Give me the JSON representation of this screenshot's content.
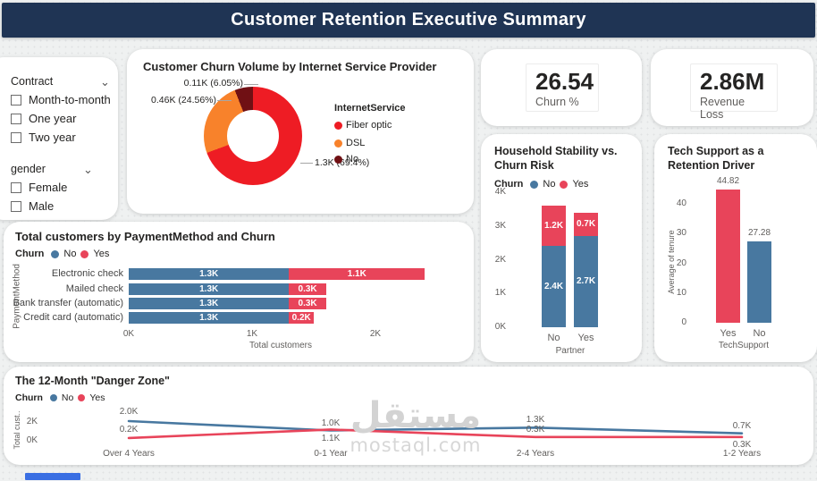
{
  "header": {
    "title": "Customer Retention Executive Summary"
  },
  "filters": [
    {
      "label": "Contract",
      "options": [
        "Month-to-month",
        "One year",
        "Two year"
      ]
    },
    {
      "label": "gender",
      "options": [
        "Female",
        "Male"
      ]
    }
  ],
  "kpis": [
    {
      "value": "26.54",
      "label": "Churn %"
    },
    {
      "value": "2.86M",
      "label": "Revenue Loss"
    }
  ],
  "colors": {
    "header_bg": "#1F3454",
    "series_no_blue": "#4878A0",
    "series_yes_red": "#E8445A",
    "donut_fiber_red": "#EE1C24",
    "donut_dsl_orange": "#F8822B",
    "donut_no_maroon": "#701014"
  },
  "watermark": {
    "line1": "مستقل",
    "line2": "mostaql.com"
  },
  "chart_data": [
    {
      "type": "pie",
      "title": "Customer Churn Volume by Internet Service Provider",
      "legend_title": "InternetService",
      "slices": [
        {
          "label": "Fiber optic",
          "value": 1300,
          "pct": 69.4,
          "value_label": "1.3K (69.4%)",
          "color": "#EE1C24"
        },
        {
          "label": "DSL",
          "value": 460,
          "pct": 24.56,
          "value_label": "0.46K (24.56%)",
          "color": "#F8822B"
        },
        {
          "label": "No",
          "value": 110,
          "pct": 6.05,
          "value_label": "0.11K (6.05%)",
          "color": "#701014"
        }
      ]
    },
    {
      "type": "bar",
      "stacked": true,
      "title": "Household Stability vs. Churn Risk",
      "legend_label": "Churn",
      "categories": [
        "No",
        "Yes"
      ],
      "xlabel": "Partner",
      "ymax": 4000,
      "yticks": [
        {
          "t": "4K",
          "v": 4000
        },
        {
          "t": "3K",
          "v": 3000
        },
        {
          "t": "2K",
          "v": 2000
        },
        {
          "t": "1K",
          "v": 1000
        },
        {
          "t": "0K",
          "v": 0
        }
      ],
      "series": [
        {
          "name": "No",
          "color": "#4878A0",
          "values": [
            2400,
            2700
          ],
          "labels": [
            "2.4K",
            "2.7K"
          ]
        },
        {
          "name": "Yes",
          "color": "#E8445A",
          "values": [
            1200,
            700
          ],
          "labels": [
            "1.2K",
            "0.7K"
          ]
        }
      ]
    },
    {
      "type": "bar",
      "title": "Tech Support as a Retention Driver",
      "categories": [
        "Yes",
        "No"
      ],
      "xlabel": "TechSupport",
      "ylabel": "Average of tenure",
      "ymax": 50,
      "yticks": [
        {
          "t": "40",
          "v": 40
        },
        {
          "t": "30",
          "v": 30
        },
        {
          "t": "20",
          "v": 20
        },
        {
          "t": "10",
          "v": 10
        },
        {
          "t": "0",
          "v": 0
        }
      ],
      "values": [
        44.82,
        27.28
      ],
      "labels": [
        "44.82",
        "27.28"
      ],
      "bar_colors": [
        "#E8445A",
        "#4878A0"
      ]
    },
    {
      "type": "bar",
      "horizontal": true,
      "stacked": true,
      "title": "Total customers by PaymentMethod and Churn",
      "legend_label": "Churn",
      "ylabel": "PaymentMethod",
      "xlabel": "Total customers",
      "xmax": 2600,
      "xticks": [
        {
          "t": "0K",
          "v": 0
        },
        {
          "t": "1K",
          "v": 1000
        },
        {
          "t": "2K",
          "v": 2000
        }
      ],
      "categories": [
        "Electronic check",
        "Mailed check",
        "Bank transfer (automatic)",
        "Credit card (automatic)"
      ],
      "series": [
        {
          "name": "No",
          "color": "#4878A0",
          "values": [
            1300,
            1300,
            1300,
            1300
          ],
          "labels": [
            "1.3K",
            "1.3K",
            "1.3K",
            "1.3K"
          ]
        },
        {
          "name": "Yes",
          "color": "#E8445A",
          "values": [
            1100,
            300,
            300,
            200
          ],
          "labels": [
            "1.1K",
            "0.3K",
            "0.3K",
            "0.2K"
          ]
        }
      ]
    },
    {
      "type": "line",
      "title": "The 12-Month \"Danger Zone\"",
      "legend_label": "Churn",
      "ylabel": "Total cust..",
      "ymax": 2000,
      "yticks": [
        {
          "t": "2K",
          "v": 2000
        },
        {
          "t": "0K",
          "v": 0
        }
      ],
      "categories": [
        "Over 4 Years",
        "0-1 Year",
        "2-4 Years",
        "1-2 Years"
      ],
      "series": [
        {
          "name": "No",
          "color": "#4878A0",
          "values": [
            2000,
            1000,
            1300,
            700
          ],
          "labels": [
            "2.0K",
            "1.0K",
            "1.3K",
            "0.7K"
          ]
        },
        {
          "name": "Yes",
          "color": "#E8445A",
          "values": [
            200,
            1100,
            300,
            300
          ],
          "labels": [
            "0.2K",
            "1.1K",
            "0.3K",
            "0.3K"
          ]
        }
      ]
    }
  ]
}
